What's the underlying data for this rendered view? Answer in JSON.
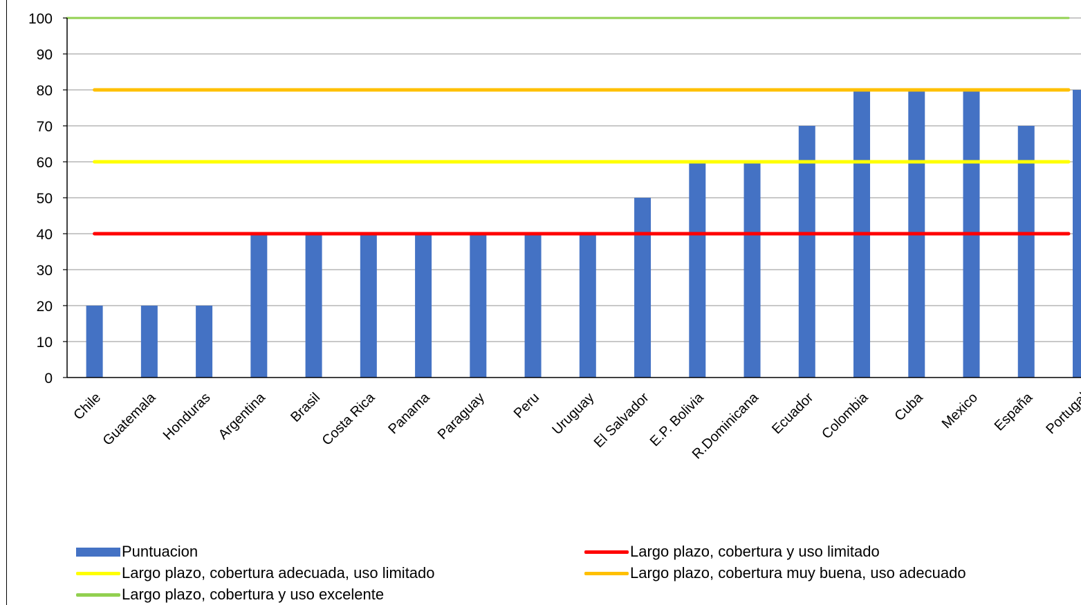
{
  "chart_data": {
    "type": "bar",
    "categories": [
      "Chile",
      "Guatemala",
      "Honduras",
      "Argentina",
      "Brasil",
      "Costa Rica",
      "Panama",
      "Paraguay",
      "Peru",
      "Uruguay",
      "El Salvador",
      "E.P. Bolivia",
      "R.Dominicana",
      "Ecuador",
      "Colombia",
      "Cuba",
      "Mexico",
      "España",
      "Portugal"
    ],
    "series": [
      {
        "name": "Puntuacion",
        "kind": "bar",
        "color": "#4472C4",
        "values": [
          20,
          20,
          20,
          40,
          40,
          40,
          40,
          40,
          40,
          40,
          50,
          60,
          60,
          70,
          80,
          80,
          80,
          70,
          80
        ]
      },
      {
        "name": "Largo plazo, cobertura y uso limitado",
        "kind": "line",
        "color": "#FF0000",
        "value": 40
      },
      {
        "name": "Largo plazo, cobertura adecuada, uso limitado",
        "kind": "line",
        "color": "#FFFF00",
        "value": 60
      },
      {
        "name": "Largo plazo, cobertura muy buena, uso adecuado",
        "kind": "line",
        "color": "#FFC000",
        "value": 80
      },
      {
        "name": "Largo plazo, cobertura y  uso excelente",
        "kind": "line",
        "color": "#92D050",
        "value": 100
      }
    ],
    "yticks": [
      0,
      10,
      20,
      30,
      40,
      50,
      60,
      70,
      80,
      90,
      100
    ],
    "ylim": [
      0,
      100
    ],
    "grid": true,
    "legend_position": "bottom",
    "title": "",
    "xlabel": "",
    "ylabel": ""
  }
}
